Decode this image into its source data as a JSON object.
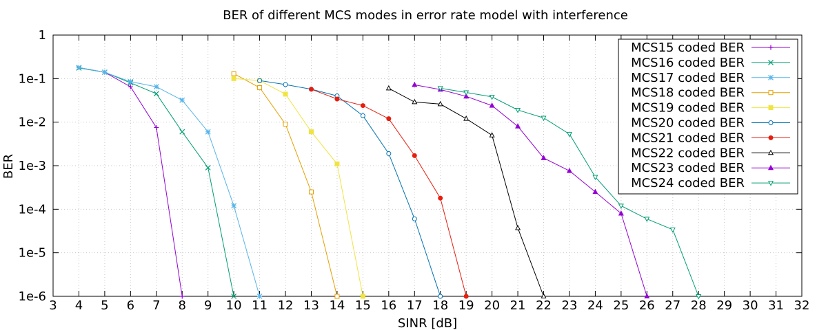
{
  "chart_data": {
    "type": "line",
    "title": "BER of different MCS modes in error rate model with interference",
    "xlabel": "SINR [dB]",
    "ylabel": "BER",
    "x_scale": "linear",
    "y_scale": "log",
    "xlim": [
      3,
      32
    ],
    "ylim": [
      1e-06,
      1
    ],
    "x_ticks": [
      "3",
      "4",
      "5",
      "6",
      "7",
      "8",
      "9",
      "10",
      "11",
      "12",
      "13",
      "14",
      "15",
      "16",
      "17",
      "18",
      "19",
      "20",
      "21",
      "22",
      "23",
      "24",
      "25",
      "26",
      "27",
      "28",
      "29",
      "30",
      "31",
      "32"
    ],
    "y_ticks": [
      "1e-6",
      "1e-5",
      "1e-4",
      "1e-3",
      "1e-2",
      "1e-1",
      "1"
    ],
    "grid": true,
    "legend_position": "top-right",
    "series": [
      {
        "name": "MCS15 coded BER",
        "color": "#9400d3",
        "marker": "plus",
        "x": [
          4,
          5,
          6,
          7,
          8
        ],
        "y": [
          0.18,
          0.14,
          0.065,
          0.0075,
          1e-06
        ]
      },
      {
        "name": "MCS16 coded BER",
        "color": "#009e73",
        "marker": "cross",
        "x": [
          4,
          5,
          6,
          7,
          8,
          9,
          10
        ],
        "y": [
          0.175,
          0.14,
          0.08,
          0.045,
          0.006,
          0.0009,
          1e-06
        ]
      },
      {
        "name": "MCS17 coded BER",
        "color": "#56b4e9",
        "marker": "star",
        "x": [
          4,
          5,
          6,
          7,
          8,
          9,
          10,
          11
        ],
        "y": [
          0.18,
          0.14,
          0.085,
          0.065,
          0.032,
          0.006,
          0.00012,
          1e-06
        ]
      },
      {
        "name": "MCS18 coded BER",
        "color": "#e69f00",
        "marker": "square-open",
        "x": [
          10,
          11,
          12,
          13,
          14
        ],
        "y": [
          0.13,
          0.062,
          0.009,
          0.00025,
          1e-06
        ]
      },
      {
        "name": "MCS19 coded BER",
        "color": "#f0e442",
        "marker": "square-filled",
        "x": [
          10,
          11,
          12,
          13,
          14,
          15
        ],
        "y": [
          0.1,
          0.09,
          0.044,
          0.006,
          0.0011,
          1e-06
        ]
      },
      {
        "name": "MCS20 coded BER",
        "color": "#0072b2",
        "marker": "circle-open",
        "x": [
          11,
          12,
          13,
          14,
          15,
          16,
          17,
          18
        ],
        "y": [
          0.09,
          0.073,
          0.057,
          0.04,
          0.014,
          0.0019,
          6e-05,
          1e-06
        ]
      },
      {
        "name": "MCS21 coded BER",
        "color": "#e51e10",
        "marker": "circle-filled",
        "x": [
          13,
          14,
          15,
          16,
          17,
          18,
          19
        ],
        "y": [
          0.057,
          0.034,
          0.024,
          0.012,
          0.0017,
          0.00018,
          1e-06
        ]
      },
      {
        "name": "MCS22 coded BER",
        "color": "#000000",
        "marker": "triangle-up-open",
        "x": [
          16,
          17,
          18,
          19,
          20,
          21,
          22
        ],
        "y": [
          0.06,
          0.029,
          0.026,
          0.012,
          0.005,
          3.7e-05,
          1e-06
        ]
      },
      {
        "name": "MCS23 coded BER",
        "color": "#9400d3",
        "marker": "triangle-up-filled",
        "x": [
          17,
          18,
          19,
          20,
          21,
          22,
          23,
          24,
          25,
          26
        ],
        "y": [
          0.072,
          0.056,
          0.039,
          0.024,
          0.008,
          0.0015,
          0.00076,
          0.00025,
          8e-05,
          1e-06
        ]
      },
      {
        "name": "MCS24 coded BER",
        "color": "#009e73",
        "marker": "triangle-down-open",
        "x": [
          18,
          19,
          20,
          21,
          22,
          23,
          24,
          25,
          26,
          27,
          28
        ],
        "y": [
          0.06,
          0.048,
          0.038,
          0.019,
          0.0125,
          0.0053,
          0.00055,
          0.00012,
          6e-05,
          3.4e-05,
          1e-06
        ]
      }
    ]
  }
}
